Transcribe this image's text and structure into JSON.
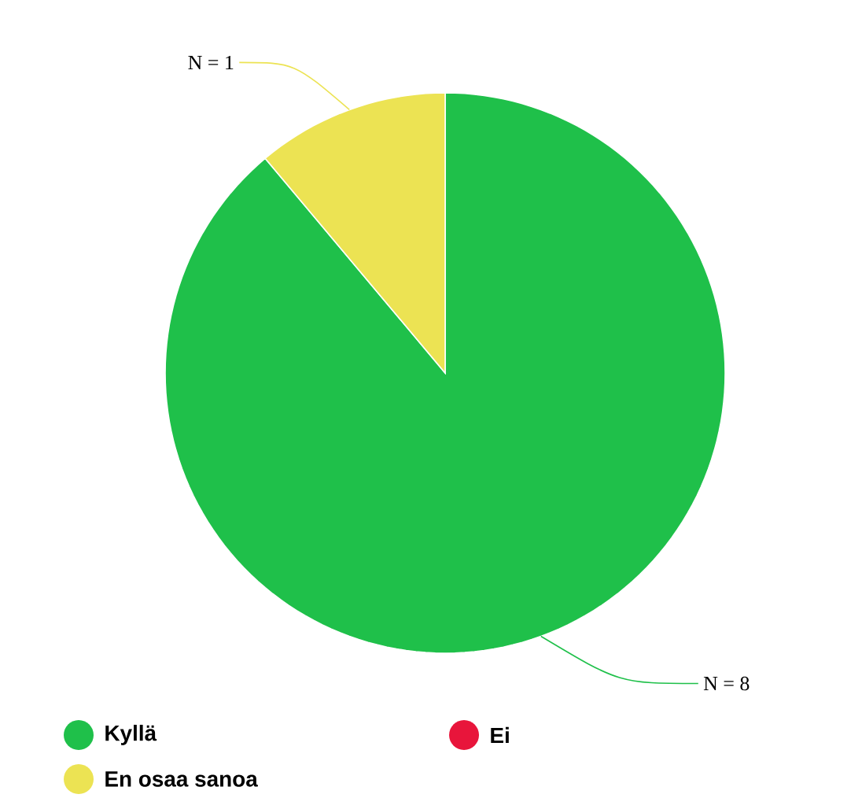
{
  "chart_data": {
    "type": "pie",
    "categories": [
      "Kyllä",
      "Ei",
      "En osaa sanoa"
    ],
    "values": [
      8,
      0,
      1
    ],
    "colors": [
      "#1fc04a",
      "#e8153b",
      "#ece353"
    ],
    "value_labels": [
      "N = 8",
      null,
      "N = 1"
    ],
    "legend": "bottom"
  }
}
